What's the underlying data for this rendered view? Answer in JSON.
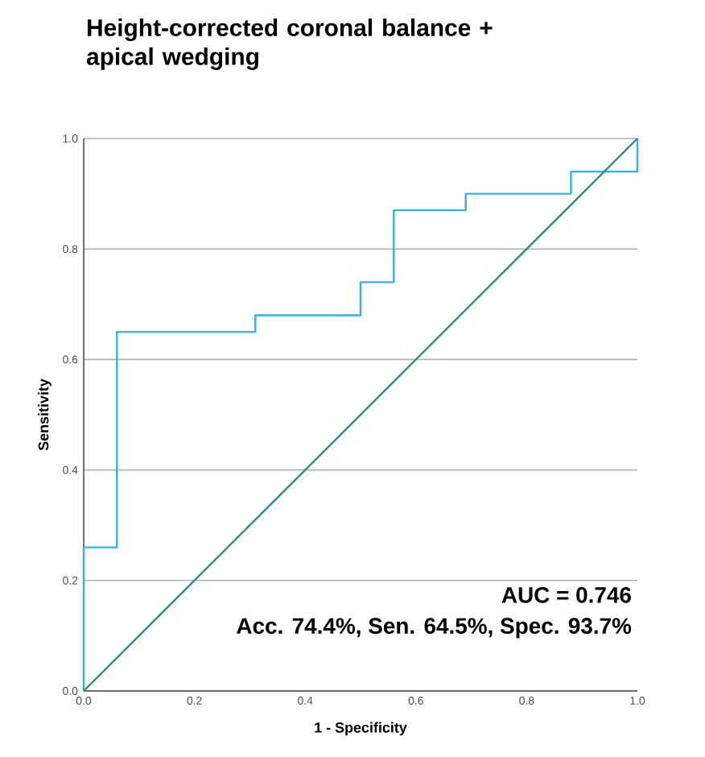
{
  "chart_data": {
    "type": "line",
    "title": "Height-corrected coronal balance + apical wedging",
    "xlabel": "1 - Specificity",
    "ylabel": "Sensitivity",
    "xlim": [
      0,
      1
    ],
    "ylim": [
      0,
      1
    ],
    "xticks": [
      {
        "value": 0,
        "label": "0.0"
      },
      0.2,
      0.4,
      0.6,
      0.8,
      {
        "value": 1,
        "label": "1.0"
      }
    ],
    "yticks": [
      {
        "value": 0,
        "label": "0.0"
      },
      0.2,
      0.4,
      0.6,
      0.8,
      {
        "value": 1,
        "label": "1.0"
      }
    ],
    "grid": "y",
    "series": [
      {
        "color": "#3aaee0",
        "x": [
          0,
          0,
          0.06,
          0.06,
          0.31,
          0.31,
          0.5,
          0.5,
          0.56,
          0.56,
          0.69,
          0.69,
          0.88,
          0.88,
          1,
          1
        ],
        "values": [
          0,
          0.26,
          0.26,
          0.65,
          0.65,
          0.68,
          0.68,
          0.74,
          0.74,
          0.87,
          0.87,
          0.9,
          0.9,
          0.94,
          0.94,
          1
        ]
      },
      {
        "color": "#2a8a7e",
        "x": [
          0,
          1
        ],
        "values": [
          0,
          1
        ]
      }
    ],
    "annotations": [
      "AUC = 0.746",
      "Acc. 74.4%, Sen. 64.5%, Spec. 93.7%"
    ]
  }
}
